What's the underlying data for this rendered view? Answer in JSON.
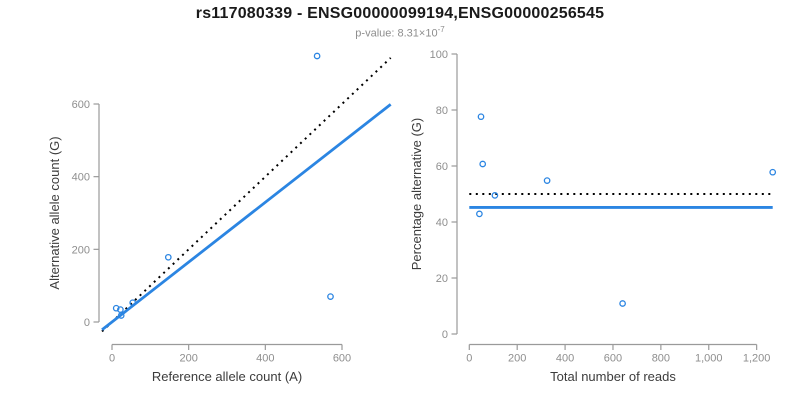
{
  "header": {
    "title": "rs117080339 - ENSG00000099194,ENSG00000256545",
    "subtitle_prefix": "p-value: 8.31×10",
    "subtitle_exponent": "-7"
  },
  "colors": {
    "accent_blue": "#2b85e2",
    "dotted_line": "#000000",
    "axis": "#9a9a9a",
    "tick_text": "#8e8e8e",
    "axis_title_text": "#3c3c3c",
    "title_text": "#1a1a1a"
  },
  "chart_data": [
    {
      "type": "scatter",
      "name": "allele-counts-plot",
      "xlabel": "Reference allele count (A)",
      "ylabel": "Alternative allele count (G)",
      "xlim": [
        -26,
        727
      ],
      "ylim": [
        -26,
        727
      ],
      "x_ticks": [
        0,
        200,
        400,
        600
      ],
      "x_tick_labels": [
        "0",
        "200",
        "400",
        "600"
      ],
      "y_ticks": [
        0,
        200,
        400,
        600
      ],
      "y_tick_labels": [
        "0",
        "200",
        "400",
        "600"
      ],
      "grid": false,
      "legend": "none",
      "point_color": "#2b85e2",
      "points": [
        {
          "x": 24,
          "y": 18
        },
        {
          "x": 11,
          "y": 38
        },
        {
          "x": 22,
          "y": 34
        },
        {
          "x": 54,
          "y": 53
        },
        {
          "x": 147,
          "y": 178
        },
        {
          "x": 570,
          "y": 70
        },
        {
          "x": 535,
          "y": 732
        }
      ],
      "lines": [
        {
          "name": "expected-identity-line",
          "style": "dotted",
          "color": "#000000",
          "x1": -26,
          "y1": -26,
          "x2": 727,
          "y2": 727
        },
        {
          "name": "fitted-ratio-line",
          "style": "solid",
          "color": "#2b85e2",
          "x1": -26,
          "y1": -21.4,
          "x2": 727,
          "y2": 599
        }
      ]
    },
    {
      "type": "scatter",
      "name": "percentage-vs-reads-plot",
      "xlabel": "Total number of reads",
      "ylabel": "Percentage alternative (G)",
      "xlim": [
        -51,
        1321
      ],
      "ylim": [
        0,
        100
      ],
      "x_ticks": [
        0,
        200,
        400,
        600,
        800,
        1000,
        1200
      ],
      "x_tick_labels": [
        "0",
        "200",
        "400",
        "600",
        "800",
        "1,000",
        "1,200"
      ],
      "y_ticks": [
        0,
        20,
        40,
        60,
        80,
        100
      ],
      "y_tick_labels": [
        "0",
        "20",
        "40",
        "60",
        "80",
        "100"
      ],
      "grid": false,
      "legend": "none",
      "point_color": "#2b85e2",
      "expected_percentage": 50,
      "fitted_percentage": 45.2,
      "points": [
        {
          "x": 42,
          "y": 42.9
        },
        {
          "x": 49,
          "y": 77.6
        },
        {
          "x": 56,
          "y": 60.7
        },
        {
          "x": 107,
          "y": 49.5
        },
        {
          "x": 325,
          "y": 54.8
        },
        {
          "x": 640,
          "y": 10.9
        },
        {
          "x": 1267,
          "y": 57.8
        }
      ],
      "lines": [
        {
          "name": "expected-50pct-line",
          "style": "dotted",
          "color": "#000000",
          "x1": 0,
          "y1": 50,
          "x2": 1267,
          "y2": 50
        },
        {
          "name": "fitted-percentage-line",
          "style": "solid",
          "color": "#2b85e2",
          "x1": 0,
          "y1": 45.2,
          "x2": 1267,
          "y2": 45.2
        }
      ]
    }
  ]
}
